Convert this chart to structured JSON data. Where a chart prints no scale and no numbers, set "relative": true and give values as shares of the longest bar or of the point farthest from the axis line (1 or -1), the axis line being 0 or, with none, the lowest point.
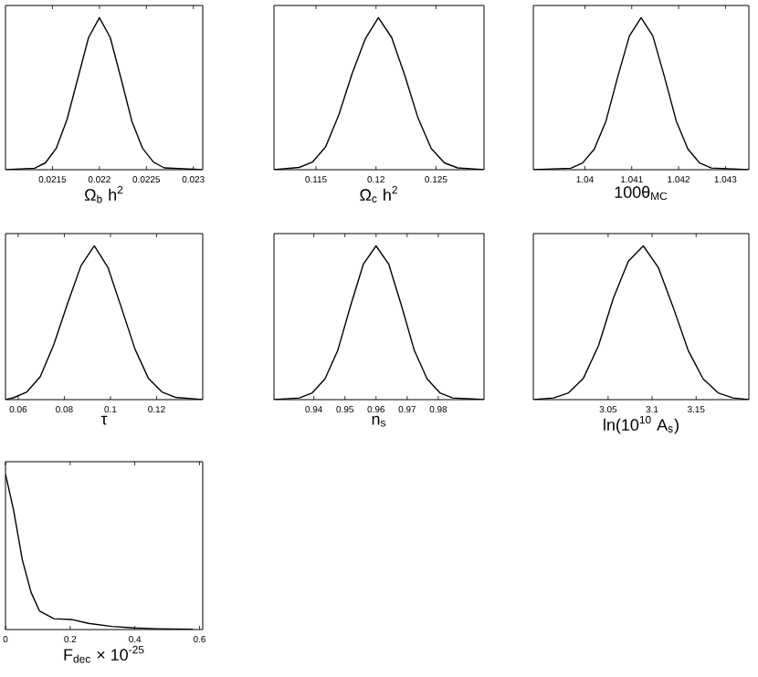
{
  "chart_data": [
    {
      "type": "line",
      "xlabel": "Ω$_{b}$ h$^{2}$",
      "relative": true,
      "tick_labels": "x",
      "xlim": [
        0.021,
        0.0231
      ],
      "xticks": [
        0.0215,
        0.022,
        0.0225,
        0.023
      ],
      "series": [
        {
          "color": "#000000",
          "x": [
            0.021,
            0.02131,
            0.021425,
            0.02154,
            0.021655,
            0.02177,
            0.021885,
            0.022,
            0.022115,
            0.02223,
            0.022345,
            0.02246,
            0.022575,
            0.02269,
            0.0231
          ],
          "values": [
            0.0,
            0.01,
            0.045,
            0.14,
            0.33,
            0.6,
            0.87,
            1.0,
            0.87,
            0.6,
            0.32,
            0.14,
            0.05,
            0.012,
            0.0
          ]
        }
      ]
    },
    {
      "type": "line",
      "xlabel": "Ω$_{c}$ h$^{2}$",
      "relative": true,
      "tick_labels": "x",
      "xlim": [
        0.1115,
        0.129
      ],
      "xticks": [
        0.115,
        0.12,
        0.125
      ],
      "series": [
        {
          "color": "#000000",
          "x": [
            0.1115,
            0.1136,
            0.1147,
            0.1158,
            0.1169,
            0.118,
            0.1191,
            0.1202,
            0.1213,
            0.1224,
            0.1235,
            0.1246,
            0.1257,
            0.1268,
            0.129
          ],
          "values": [
            0.0,
            0.015,
            0.05,
            0.15,
            0.36,
            0.63,
            0.86,
            1.0,
            0.87,
            0.62,
            0.34,
            0.14,
            0.045,
            0.012,
            0.0
          ]
        }
      ]
    },
    {
      "type": "line",
      "xlabel": "100θ$_{MC}$",
      "relative": true,
      "tick_labels": "x",
      "xlim": [
        1.0389,
        1.0435
      ],
      "xticks": [
        1.04,
        1.041,
        1.042,
        1.043
      ],
      "series": [
        {
          "color": "#000000",
          "x": [
            1.0389,
            1.0397,
            1.03995,
            1.0402,
            1.04045,
            1.0407,
            1.04095,
            1.0412,
            1.04145,
            1.0417,
            1.04195,
            1.0422,
            1.04245,
            1.0427,
            1.0435
          ],
          "values": [
            0.0,
            0.01,
            0.044,
            0.135,
            0.32,
            0.61,
            0.88,
            1.0,
            0.88,
            0.61,
            0.32,
            0.135,
            0.044,
            0.011,
            0.0
          ]
        }
      ]
    },
    {
      "type": "line",
      "xlabel": "τ",
      "relative": true,
      "tick_labels": "x",
      "xlim": [
        0.0545,
        0.14
      ],
      "xticks": [
        0.06,
        0.08,
        0.1,
        0.12
      ],
      "series": [
        {
          "color": "#000000",
          "x": [
            0.0545,
            0.0579,
            0.0638,
            0.0696,
            0.0755,
            0.0813,
            0.0872,
            0.093,
            0.0989,
            0.1047,
            0.1106,
            0.1164,
            0.1223,
            0.1281,
            0.14
          ],
          "values": [
            0.0,
            0.012,
            0.05,
            0.15,
            0.36,
            0.62,
            0.87,
            1.0,
            0.86,
            0.6,
            0.33,
            0.14,
            0.05,
            0.015,
            0.0
          ]
        }
      ]
    },
    {
      "type": "line",
      "xlabel": "n$_{s}$",
      "relative": true,
      "tick_labels": "x",
      "xlim": [
        0.9272,
        0.9947
      ],
      "xticks": [
        0.94,
        0.95,
        0.96,
        0.97,
        0.98
      ],
      "series": [
        {
          "color": "#000000",
          "x": [
            0.9272,
            0.9354,
            0.9395,
            0.9436,
            0.9477,
            0.9518,
            0.9559,
            0.96,
            0.9641,
            0.9682,
            0.9723,
            0.9764,
            0.9805,
            0.9846,
            0.9947
          ],
          "values": [
            0.0,
            0.011,
            0.044,
            0.135,
            0.32,
            0.61,
            0.88,
            1.0,
            0.88,
            0.61,
            0.32,
            0.135,
            0.044,
            0.011,
            0.0
          ]
        }
      ]
    },
    {
      "type": "line",
      "xlabel": "ln(10$^{10}$ A$_{s}$)",
      "relative": true,
      "tick_labels": "x",
      "xlim": [
        2.965,
        3.21
      ],
      "xticks": [
        3.05,
        3.1,
        3.15
      ],
      "series": [
        {
          "color": "#000000",
          "x": [
            2.965,
            2.988,
            3.005,
            3.022,
            3.039,
            3.056,
            3.073,
            3.09,
            3.107,
            3.124,
            3.141,
            3.158,
            3.175,
            3.192,
            3.21
          ],
          "values": [
            0.0,
            0.011,
            0.044,
            0.14,
            0.35,
            0.66,
            0.9,
            1.0,
            0.86,
            0.6,
            0.32,
            0.135,
            0.044,
            0.011,
            0.0
          ]
        }
      ]
    },
    {
      "type": "line",
      "xlabel": "F$_{dec}$ × 10$^{-25}$",
      "relative": true,
      "tick_labels": "x",
      "xlim": [
        0,
        0.61
      ],
      "xticks": [
        0,
        0.2,
        0.4,
        0.6
      ],
      "series": [
        {
          "color": "#000000",
          "x": [
            0,
            0.025,
            0.052,
            0.079,
            0.105,
            0.15,
            0.204,
            0.257,
            0.33,
            0.4,
            0.47,
            0.58
          ],
          "values": [
            1.0,
            0.77,
            0.45,
            0.24,
            0.12,
            0.07,
            0.065,
            0.04,
            0.02,
            0.01,
            0.005,
            0.002
          ]
        }
      ]
    }
  ]
}
